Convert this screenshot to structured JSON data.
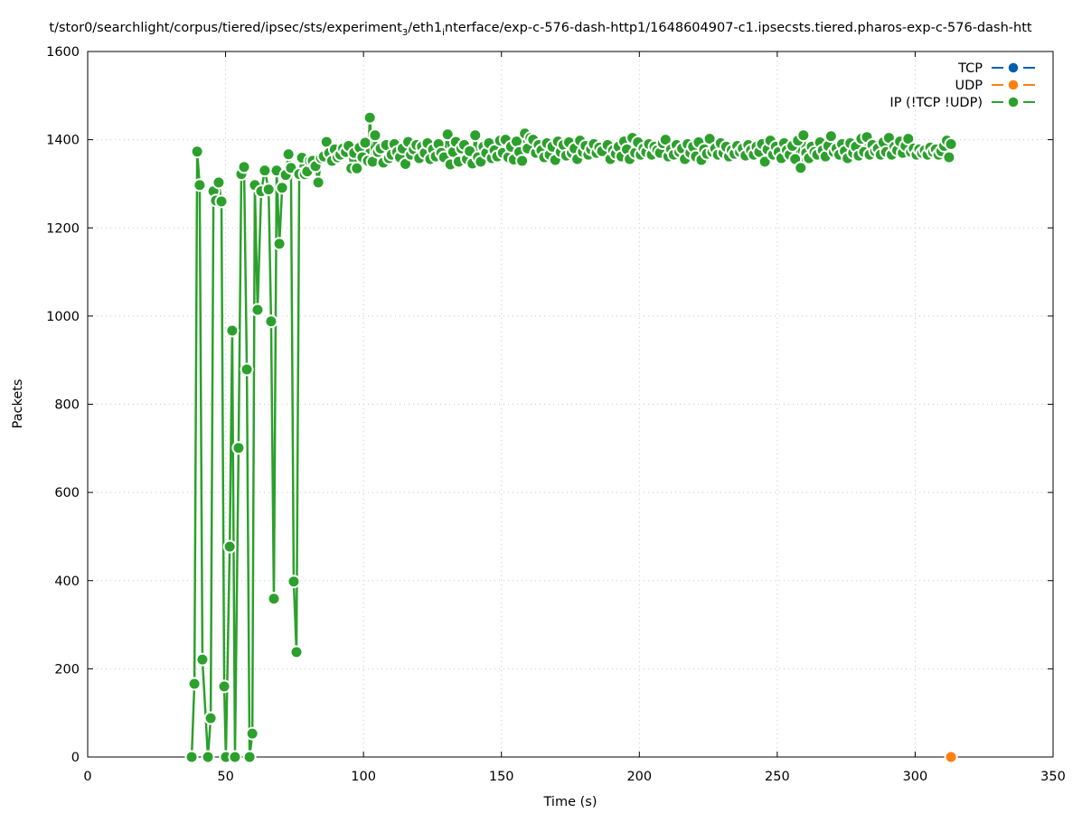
{
  "chart_data": {
    "type": "line",
    "title_parts": [
      "t/stor0/searchlight/corpus/tiered/ipsec/sts/experiment",
      "3",
      "/eth1",
      "i",
      "nterface/exp-c-576-dash-http1/1648604907-c1.ipsecsts.tiered.pharos-exp-c-576-dash-htt"
    ],
    "xlabel": "Time (s)",
    "ylabel": "Packets",
    "xlim": [
      0,
      350
    ],
    "ylim": [
      0,
      1600
    ],
    "xticks": [
      0,
      50,
      100,
      150,
      200,
      250,
      300,
      350
    ],
    "yticks": [
      0,
      200,
      400,
      600,
      800,
      1000,
      1200,
      1400,
      1600
    ],
    "grid": true,
    "legend_position": "top-right",
    "series": [
      {
        "name": "TCP",
        "color": "#0060ad",
        "points": []
      },
      {
        "name": "UDP",
        "color": "#ff7f0e",
        "points": [
          [
            313,
            0
          ]
        ]
      },
      {
        "name": "IP (!TCP  !UDP)",
        "color": "#2ca02c",
        "points": [
          [
            37.7,
            0
          ],
          [
            38.7,
            166
          ],
          [
            39.7,
            1373
          ],
          [
            40.6,
            1297
          ],
          [
            41.6,
            221
          ],
          [
            43.6,
            0
          ],
          [
            44.6,
            88
          ],
          [
            45.6,
            1283
          ],
          [
            46.5,
            1262
          ],
          [
            47.5,
            1303
          ],
          [
            48.5,
            1260
          ],
          [
            49.5,
            160
          ],
          [
            50.1,
            0
          ],
          [
            51.5,
            477
          ],
          [
            52.4,
            967
          ],
          [
            53.4,
            0
          ],
          [
            54.7,
            701
          ],
          [
            55.7,
            1322
          ],
          [
            56.7,
            1338
          ],
          [
            57.7,
            879
          ],
          [
            58.7,
            0
          ],
          [
            59.7,
            53
          ],
          [
            60.6,
            1297
          ],
          [
            61.6,
            1014
          ],
          [
            62.9,
            1283
          ],
          [
            64.2,
            1330
          ],
          [
            65.6,
            1287
          ],
          [
            66.5,
            988
          ],
          [
            67.5,
            359
          ],
          [
            68.5,
            1330
          ],
          [
            69.5,
            1164
          ],
          [
            70.5,
            1291
          ],
          [
            71.8,
            1320
          ],
          [
            72.8,
            1367
          ],
          [
            73.7,
            1336
          ],
          [
            74.7,
            398
          ],
          [
            75.7,
            238
          ],
          [
            76.7,
            1322
          ],
          [
            77.7,
            1359
          ],
          [
            78.7,
            1322
          ],
          [
            79.6,
            1328
          ],
          [
            80.6,
            1352
          ],
          [
            81.6,
            1352
          ],
          [
            82.6,
            1340
          ],
          [
            83.6,
            1303
          ],
          [
            84.6,
            1358
          ],
          [
            85.6,
            1362
          ],
          [
            86.6,
            1395
          ],
          [
            87.6,
            1370
          ],
          [
            88.6,
            1352
          ],
          [
            89.6,
            1378
          ],
          [
            90.6,
            1360
          ],
          [
            91.6,
            1366
          ],
          [
            92.6,
            1380
          ],
          [
            93.6,
            1372
          ],
          [
            94.6,
            1386
          ],
          [
            95.6,
            1335
          ],
          [
            96.6,
            1370
          ],
          [
            97.6,
            1335
          ],
          [
            98.6,
            1382
          ],
          [
            99.6,
            1360
          ],
          [
            100.6,
            1393
          ],
          [
            101.6,
            1352
          ],
          [
            102.3,
            1450
          ],
          [
            103.3,
            1350
          ],
          [
            104.2,
            1410
          ],
          [
            105.2,
            1372
          ],
          [
            106.2,
            1380
          ],
          [
            107.2,
            1348
          ],
          [
            108.2,
            1388
          ],
          [
            109.2,
            1358
          ],
          [
            110.2,
            1366
          ],
          [
            111.2,
            1390
          ],
          [
            112.2,
            1372
          ],
          [
            113.2,
            1360
          ],
          [
            114.2,
            1380
          ],
          [
            115.2,
            1345
          ],
          [
            116.2,
            1395
          ],
          [
            117.2,
            1366
          ],
          [
            118.2,
            1378
          ],
          [
            119.2,
            1388
          ],
          [
            120.2,
            1358
          ],
          [
            121.2,
            1384
          ],
          [
            122.2,
            1370
          ],
          [
            123.2,
            1392
          ],
          [
            124.2,
            1356
          ],
          [
            125.2,
            1378
          ],
          [
            126.2,
            1362
          ],
          [
            127.2,
            1390
          ],
          [
            128.2,
            1370
          ],
          [
            129.2,
            1360
          ],
          [
            130.5,
            1412
          ],
          [
            131.5,
            1344
          ],
          [
            132.5,
            1372
          ],
          [
            133.5,
            1395
          ],
          [
            134.5,
            1350
          ],
          [
            135.5,
            1380
          ],
          [
            136.5,
            1388
          ],
          [
            137.5,
            1356
          ],
          [
            138.5,
            1374
          ],
          [
            139.5,
            1346
          ],
          [
            140.5,
            1410
          ],
          [
            141.5,
            1360
          ],
          [
            142.5,
            1350
          ],
          [
            143.5,
            1384
          ],
          [
            144.5,
            1370
          ],
          [
            145.5,
            1392
          ],
          [
            146.5,
            1358
          ],
          [
            147.5,
            1376
          ],
          [
            148.5,
            1362
          ],
          [
            149.5,
            1398
          ],
          [
            150.5,
            1370
          ],
          [
            151.5,
            1400
          ],
          [
            152.5,
            1360
          ],
          [
            153.5,
            1384
          ],
          [
            154.5,
            1355
          ],
          [
            155.5,
            1396
          ],
          [
            156.5,
            1372
          ],
          [
            157.5,
            1352
          ],
          [
            158.5,
            1414
          ],
          [
            159.5,
            1380
          ],
          [
            160.5,
            1404
          ],
          [
            161.5,
            1400
          ],
          [
            162.5,
            1370
          ],
          [
            163.5,
            1388
          ],
          [
            164.5,
            1376
          ],
          [
            165.5,
            1360
          ],
          [
            166.5,
            1392
          ],
          [
            167.5,
            1366
          ],
          [
            168.5,
            1384
          ],
          [
            169.5,
            1354
          ],
          [
            170.5,
            1396
          ],
          [
            171.5,
            1372
          ],
          [
            172.5,
            1388
          ],
          [
            173.5,
            1364
          ],
          [
            174.5,
            1394
          ],
          [
            175.5,
            1370
          ],
          [
            176.5,
            1380
          ],
          [
            177.5,
            1356
          ],
          [
            178.5,
            1398
          ],
          [
            179.5,
            1372
          ],
          [
            180.5,
            1386
          ],
          [
            181.5,
            1366
          ],
          [
            182.5,
            1378
          ],
          [
            183.5,
            1390
          ],
          [
            184.5,
            1370
          ],
          [
            185.5,
            1382
          ],
          [
            186.5,
            1374
          ],
          [
            188.5,
            1388
          ],
          [
            189.5,
            1356
          ],
          [
            190.5,
            1376
          ],
          [
            191.5,
            1368
          ],
          [
            192.5,
            1384
          ],
          [
            193.5,
            1362
          ],
          [
            194.5,
            1396
          ],
          [
            195.5,
            1378
          ],
          [
            196.5,
            1356
          ],
          [
            197.5,
            1404
          ],
          [
            198.5,
            1370
          ],
          [
            199.5,
            1394
          ],
          [
            200.5,
            1366
          ],
          [
            201.5,
            1380
          ],
          [
            202.5,
            1372
          ],
          [
            203.5,
            1390
          ],
          [
            204.5,
            1366
          ],
          [
            205.5,
            1384
          ],
          [
            206.5,
            1376
          ],
          [
            207.5,
            1370
          ],
          [
            208.5,
            1392
          ],
          [
            209.5,
            1400
          ],
          [
            210.5,
            1362
          ],
          [
            211.5,
            1378
          ],
          [
            212.5,
            1366
          ],
          [
            213.5,
            1388
          ],
          [
            214.5,
            1372
          ],
          [
            215.5,
            1380
          ],
          [
            216.5,
            1356
          ],
          [
            217.5,
            1390
          ],
          [
            218.5,
            1370
          ],
          [
            219.5,
            1384
          ],
          [
            220.5,
            1362
          ],
          [
            221.5,
            1394
          ],
          [
            222.5,
            1354
          ],
          [
            223.5,
            1378
          ],
          [
            224.5,
            1368
          ],
          [
            225.5,
            1402
          ],
          [
            226.5,
            1372
          ],
          [
            227.5,
            1380
          ],
          [
            228.5,
            1366
          ],
          [
            229.5,
            1392
          ],
          [
            230.5,
            1370
          ],
          [
            231.5,
            1384
          ],
          [
            232.5,
            1362
          ],
          [
            233.5,
            1376
          ],
          [
            234.5,
            1368
          ],
          [
            235.5,
            1386
          ],
          [
            236.5,
            1372
          ],
          [
            237.5,
            1380
          ],
          [
            238.5,
            1364
          ],
          [
            239.5,
            1388
          ],
          [
            240.5,
            1376
          ],
          [
            241.5,
            1366
          ],
          [
            242.5,
            1384
          ],
          [
            243.5,
            1372
          ],
          [
            244.5,
            1390
          ],
          [
            245.5,
            1350
          ],
          [
            246.5,
            1378
          ],
          [
            247.5,
            1398
          ],
          [
            248.5,
            1366
          ],
          [
            249.5,
            1384
          ],
          [
            250.5,
            1372
          ],
          [
            251.5,
            1358
          ],
          [
            252.5,
            1392
          ],
          [
            253.5,
            1376
          ],
          [
            254.5,
            1366
          ],
          [
            255.5,
            1386
          ],
          [
            256.5,
            1356
          ],
          [
            257.5,
            1398
          ],
          [
            258.5,
            1336
          ],
          [
            259.5,
            1410
          ],
          [
            260.5,
            1370
          ],
          [
            261.5,
            1358
          ],
          [
            262.5,
            1384
          ],
          [
            263.5,
            1372
          ],
          [
            264.5,
            1366
          ],
          [
            265.5,
            1394
          ],
          [
            266.5,
            1376
          ],
          [
            267.5,
            1362
          ],
          [
            268.5,
            1386
          ],
          [
            269.5,
            1408
          ],
          [
            270.5,
            1372
          ],
          [
            271.5,
            1380
          ],
          [
            272.5,
            1366
          ],
          [
            273.5,
            1390
          ],
          [
            274.5,
            1374
          ],
          [
            275.5,
            1358
          ],
          [
            276.5,
            1392
          ],
          [
            277.5,
            1370
          ],
          [
            278.5,
            1384
          ],
          [
            279.5,
            1364
          ],
          [
            280.5,
            1402
          ],
          [
            281.5,
            1372
          ],
          [
            282.5,
            1406
          ],
          [
            283.5,
            1366
          ],
          [
            284.5,
            1388
          ],
          [
            285.5,
            1374
          ],
          [
            286.5,
            1380
          ],
          [
            287.5,
            1366
          ],
          [
            288.5,
            1394
          ],
          [
            289.5,
            1372
          ],
          [
            290.5,
            1404
          ],
          [
            291.5,
            1366
          ],
          [
            292.5,
            1384
          ],
          [
            293.5,
            1376
          ],
          [
            294.5,
            1396
          ],
          [
            295.5,
            1370
          ],
          [
            296.5,
            1386
          ],
          [
            297.5,
            1402
          ],
          [
            298.5,
            1372
          ],
          [
            299.5,
            1380
          ],
          [
            300.5,
            1366
          ],
          [
            301.5,
            1378
          ],
          [
            302.5,
            1370
          ],
          [
            303.5,
            1376
          ],
          [
            304.5,
            1366
          ],
          [
            305.5,
            1382
          ],
          [
            306.5,
            1372
          ],
          [
            307.5,
            1378
          ],
          [
            308.5,
            1366
          ],
          [
            309.5,
            1374
          ],
          [
            310.5,
            1386
          ],
          [
            311.5,
            1398
          ],
          [
            312.3,
            1360
          ],
          [
            313,
            1390
          ]
        ]
      }
    ]
  }
}
